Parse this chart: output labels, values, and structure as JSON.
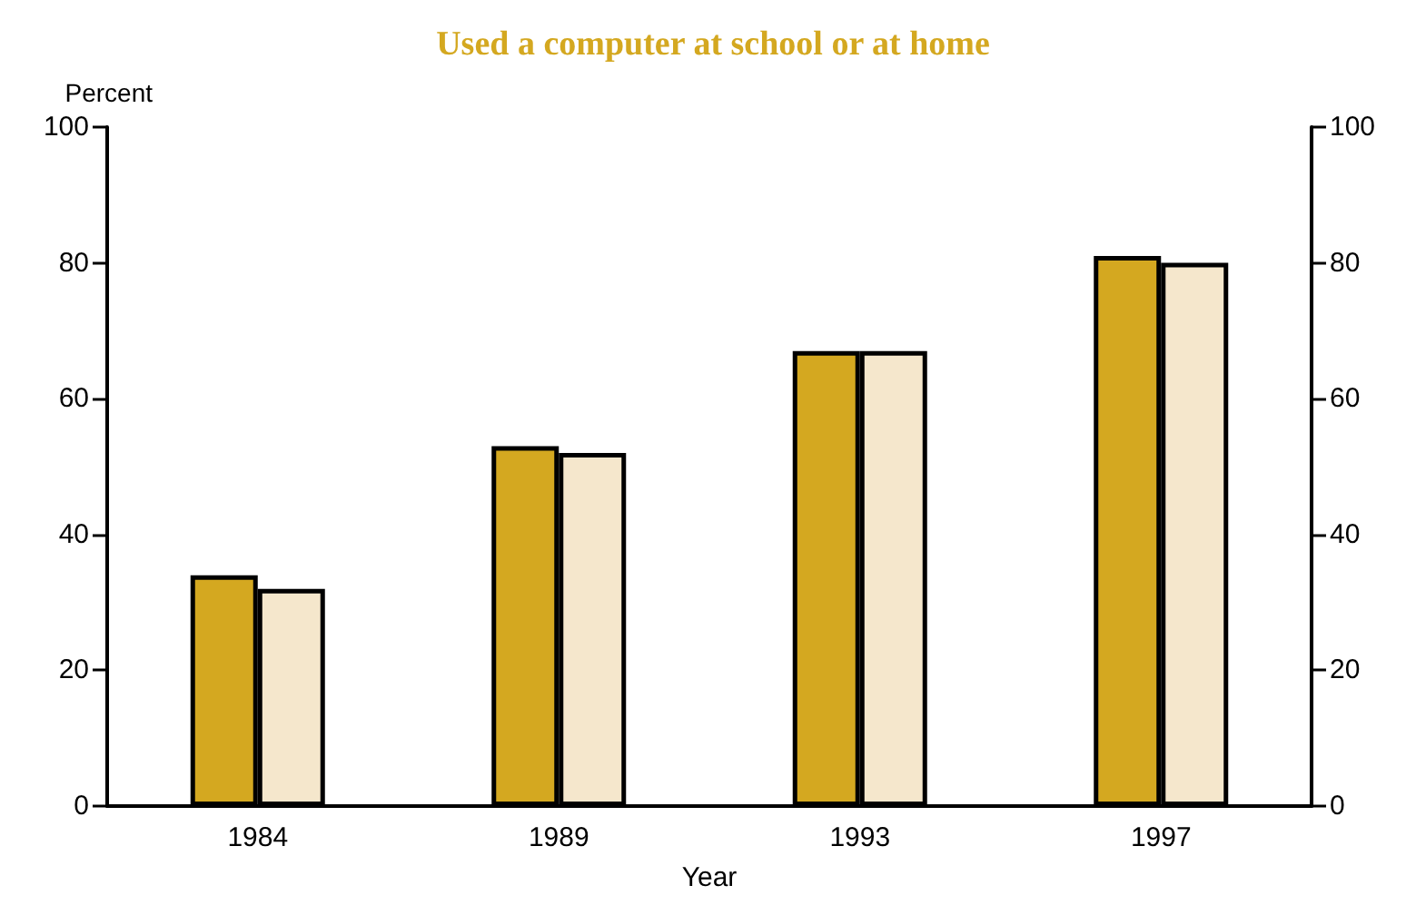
{
  "chart_data": {
    "type": "bar",
    "title": "Used a computer at school or at home",
    "xlabel": "Year",
    "ylabel": "Percent",
    "categories": [
      "1984",
      "1989",
      "1993",
      "1997"
    ],
    "series": [
      {
        "color": "#d4a820",
        "values": [
          34,
          53,
          67,
          81
        ]
      },
      {
        "color": "#f5e7cc",
        "values": [
          32,
          52,
          67,
          80
        ]
      }
    ],
    "ylim": [
      0,
      100
    ],
    "yticks": [
      0,
      20,
      40,
      60,
      80,
      100
    ],
    "y2lim": [
      0,
      100
    ],
    "y2ticks": [
      0,
      20,
      40,
      60,
      80,
      100
    ],
    "grid": false
  }
}
